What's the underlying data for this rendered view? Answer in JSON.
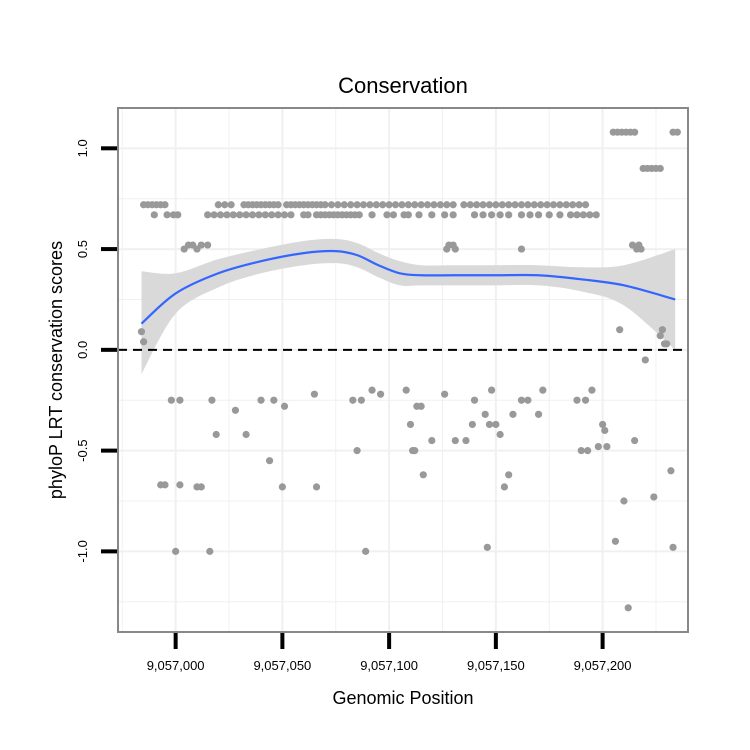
{
  "chart_data": {
    "type": "scatter",
    "title": "Conservation",
    "xlabel": "Genomic Position",
    "ylabel": "phyloP LRT conservation scores",
    "xlim": [
      9056973,
      9057240
    ],
    "ylim": [
      -1.4,
      1.2
    ],
    "x_ticks": [
      9057000,
      9057050,
      9057100,
      9057150,
      9057200
    ],
    "x_tick_labels": [
      "9,057,000",
      "9,057,050",
      "9,057,100",
      "9,057,150",
      "9,057,200"
    ],
    "y_ticks": [
      -1.0,
      -0.5,
      0.0,
      0.5,
      1.0
    ],
    "y_tick_labels": [
      "-1.0",
      "-0.5",
      "0.0",
      "0.5",
      "1.0"
    ],
    "grid": true,
    "reference_line": {
      "y": 0,
      "style": "dashed",
      "color": "#000000"
    },
    "colors": {
      "points": "#999999",
      "smooth_line": "#3366ff",
      "confidence_band": "#d9d9d9",
      "panel_border": "#888888",
      "grid": "#f0f0f0"
    },
    "series": [
      {
        "type": "scatter",
        "points": [
          [
            9056985,
            0.72
          ],
          [
            9056987,
            0.72
          ],
          [
            9056989,
            0.72
          ],
          [
            9056991,
            0.72
          ],
          [
            9056993,
            0.72
          ],
          [
            9056995,
            0.72
          ],
          [
            9056990,
            0.67
          ],
          [
            9056996,
            0.67
          ],
          [
            9056999,
            0.67
          ],
          [
            9057001,
            0.67
          ],
          [
            9056984,
            0.09
          ],
          [
            9056985,
            0.04
          ],
          [
            9056998,
            -0.25
          ],
          [
            9057002,
            -0.25
          ],
          [
            9056993,
            -0.67
          ],
          [
            9056995,
            -0.67
          ],
          [
            9057002,
            -0.67
          ],
          [
            9057010,
            -0.68
          ],
          [
            9057012,
            -0.68
          ],
          [
            9057000,
            -1.0
          ],
          [
            9057016,
            -1.0
          ],
          [
            9057004,
            0.5
          ],
          [
            9057006,
            0.52
          ],
          [
            9057008,
            0.52
          ],
          [
            9057010,
            0.5
          ],
          [
            9057012,
            0.52
          ],
          [
            9057015,
            0.52
          ],
          [
            9057017,
            -0.25
          ],
          [
            9057019,
            -0.42
          ],
          [
            9057015,
            0.67
          ],
          [
            9057018,
            0.67
          ],
          [
            9057021,
            0.67
          ],
          [
            9057024,
            0.67
          ],
          [
            9057027,
            0.67
          ],
          [
            9057030,
            0.67
          ],
          [
            9057033,
            0.67
          ],
          [
            9057020,
            0.72
          ],
          [
            9057023,
            0.72
          ],
          [
            9057026,
            0.72
          ],
          [
            9057032,
            0.72
          ],
          [
            9057034,
            0.72
          ],
          [
            9057036,
            0.72
          ],
          [
            9057038,
            0.72
          ],
          [
            9057040,
            0.72
          ],
          [
            9057042,
            0.72
          ],
          [
            9057044,
            0.72
          ],
          [
            9057046,
            0.72
          ],
          [
            9057048,
            0.72
          ],
          [
            9057036,
            0.67
          ],
          [
            9057039,
            0.67
          ],
          [
            9057042,
            0.67
          ],
          [
            9057045,
            0.67
          ],
          [
            9057048,
            0.67
          ],
          [
            9057051,
            0.67
          ],
          [
            9057054,
            0.67
          ],
          [
            9057028,
            -0.3
          ],
          [
            9057033,
            -0.42
          ],
          [
            9057040,
            -0.25
          ],
          [
            9057044,
            -0.55
          ],
          [
            9057046,
            -0.25
          ],
          [
            9057050,
            -0.68
          ],
          [
            9057051,
            -0.28
          ],
          [
            9057052,
            0.72
          ],
          [
            9057054,
            0.72
          ],
          [
            9057056,
            0.72
          ],
          [
            9057058,
            0.72
          ],
          [
            9057060,
            0.72
          ],
          [
            9057062,
            0.72
          ],
          [
            9057064,
            0.72
          ],
          [
            9057066,
            0.72
          ],
          [
            9057068,
            0.72
          ],
          [
            9057070,
            0.72
          ],
          [
            9057060,
            0.67
          ],
          [
            9057062,
            0.67
          ],
          [
            9057066,
            0.67
          ],
          [
            9057068,
            0.67
          ],
          [
            9057070,
            0.67
          ],
          [
            9057072,
            0.67
          ],
          [
            9057074,
            0.67
          ],
          [
            9057076,
            0.67
          ],
          [
            9057078,
            0.67
          ],
          [
            9057080,
            0.67
          ],
          [
            9057082,
            0.67
          ],
          [
            9057084,
            0.67
          ],
          [
            9057065,
            -0.22
          ],
          [
            9057066,
            -0.68
          ],
          [
            9057073,
            0.72
          ],
          [
            9057076,
            0.72
          ],
          [
            9057079,
            0.72
          ],
          [
            9057082,
            0.72
          ],
          [
            9057085,
            0.72
          ],
          [
            9057088,
            0.72
          ],
          [
            9057091,
            0.72
          ],
          [
            9057094,
            0.72
          ],
          [
            9057097,
            0.72
          ],
          [
            9057100,
            0.72
          ],
          [
            9057103,
            0.72
          ],
          [
            9057106,
            0.72
          ],
          [
            9057109,
            0.72
          ],
          [
            9057086,
            0.67
          ],
          [
            9057092,
            0.67
          ],
          [
            9057099,
            0.67
          ],
          [
            9057102,
            0.67
          ],
          [
            9057107,
            0.67
          ],
          [
            9057109,
            0.67
          ],
          [
            9057083,
            -0.25
          ],
          [
            9057085,
            -0.5
          ],
          [
            9057087,
            -0.25
          ],
          [
            9057089,
            -1.0
          ],
          [
            9057092,
            -0.2
          ],
          [
            9057096,
            -0.22
          ],
          [
            9057108,
            -0.2
          ],
          [
            9057110,
            -0.37
          ],
          [
            9057111,
            -0.5
          ],
          [
            9057112,
            -0.5
          ],
          [
            9057113,
            -0.28
          ],
          [
            9057115,
            -0.28
          ],
          [
            9057116,
            -0.62
          ],
          [
            9057120,
            -0.45
          ],
          [
            9057112,
            0.72
          ],
          [
            9057115,
            0.72
          ],
          [
            9057118,
            0.72
          ],
          [
            9057121,
            0.72
          ],
          [
            9057124,
            0.72
          ],
          [
            9057127,
            0.72
          ],
          [
            9057130,
            0.72
          ],
          [
            9057114,
            0.67
          ],
          [
            9057120,
            0.67
          ],
          [
            9057126,
            0.67
          ],
          [
            9057130,
            0.67
          ],
          [
            9057127,
            0.5
          ],
          [
            9057128,
            0.52
          ],
          [
            9057130,
            0.52
          ],
          [
            9057131,
            0.5
          ],
          [
            9057126,
            -0.22
          ],
          [
            9057131,
            -0.45
          ],
          [
            9057136,
            -0.45
          ],
          [
            9057139,
            -0.37
          ],
          [
            9057140,
            -0.25
          ],
          [
            9057135,
            0.72
          ],
          [
            9057138,
            0.72
          ],
          [
            9057141,
            0.72
          ],
          [
            9057144,
            0.72
          ],
          [
            9057147,
            0.72
          ],
          [
            9057150,
            0.72
          ],
          [
            9057153,
            0.72
          ],
          [
            9057156,
            0.72
          ],
          [
            9057159,
            0.72
          ],
          [
            9057140,
            0.67
          ],
          [
            9057144,
            0.67
          ],
          [
            9057148,
            0.67
          ],
          [
            9057152,
            0.67
          ],
          [
            9057156,
            0.67
          ],
          [
            9057145,
            -0.32
          ],
          [
            9057146,
            -0.98
          ],
          [
            9057147,
            -0.37
          ],
          [
            9057148,
            -0.2
          ],
          [
            9057150,
            -0.37
          ],
          [
            9057152,
            -0.42
          ],
          [
            9057154,
            -0.68
          ],
          [
            9057156,
            -0.62
          ],
          [
            9057158,
            -0.32
          ],
          [
            9057162,
            0.72
          ],
          [
            9057165,
            0.72
          ],
          [
            9057168,
            0.72
          ],
          [
            9057171,
            0.72
          ],
          [
            9057174,
            0.72
          ],
          [
            9057177,
            0.72
          ],
          [
            9057180,
            0.72
          ],
          [
            9057183,
            0.72
          ],
          [
            9057186,
            0.72
          ],
          [
            9057189,
            0.72
          ],
          [
            9057192,
            0.72
          ],
          [
            9057162,
            0.67
          ],
          [
            9057166,
            0.67
          ],
          [
            9057170,
            0.67
          ],
          [
            9057175,
            0.67
          ],
          [
            9057180,
            0.67
          ],
          [
            9057185,
            0.67
          ],
          [
            9057188,
            0.67
          ],
          [
            9057191,
            0.67
          ],
          [
            9057194,
            0.67
          ],
          [
            9057197,
            0.67
          ],
          [
            9057162,
            0.5
          ],
          [
            9057162,
            -0.25
          ],
          [
            9057165,
            -0.25
          ],
          [
            9057170,
            -0.32
          ],
          [
            9057172,
            -0.2
          ],
          [
            9057188,
            -0.25
          ],
          [
            9057190,
            -0.5
          ],
          [
            9057192,
            -0.25
          ],
          [
            9057193,
            -0.5
          ],
          [
            9057195,
            -0.2
          ],
          [
            9057198,
            -0.48
          ],
          [
            9057200,
            -0.37
          ],
          [
            9057201,
            -0.4
          ],
          [
            9057202,
            -0.48
          ],
          [
            9057205,
            1.08
          ],
          [
            9057207,
            1.08
          ],
          [
            9057209,
            1.08
          ],
          [
            9057211,
            1.08
          ],
          [
            9057213,
            1.08
          ],
          [
            9057215,
            1.08
          ],
          [
            9057206,
            -0.95
          ],
          [
            9057208,
            0.1
          ],
          [
            9057210,
            -0.75
          ],
          [
            9057212,
            -1.28
          ],
          [
            9057214,
            0.52
          ],
          [
            9057215,
            -0.45
          ],
          [
            9057216,
            0.5
          ],
          [
            9057217,
            0.52
          ],
          [
            9057218,
            0.5
          ],
          [
            9057219,
            0.9
          ],
          [
            9057221,
            0.9
          ],
          [
            9057223,
            0.9
          ],
          [
            9057225,
            0.9
          ],
          [
            9057227,
            0.9
          ],
          [
            9057220,
            -0.05
          ],
          [
            9057224,
            -0.73
          ],
          [
            9057227,
            0.07
          ],
          [
            9057228,
            0.1
          ],
          [
            9057229,
            0.03
          ],
          [
            9057230,
            0.03
          ],
          [
            9057232,
            -0.6
          ],
          [
            9057233,
            -0.98
          ],
          [
            9057233,
            1.08
          ],
          [
            9057235,
            1.08
          ]
        ]
      },
      {
        "type": "line",
        "smooth": true,
        "x": [
          9056984,
          9057000,
          9057020,
          9057040,
          9057060,
          9057075,
          9057085,
          9057095,
          9057105,
          9057115,
          9057130,
          9057150,
          9057170,
          9057190,
          9057210,
          9057234
        ],
        "y": [
          0.13,
          0.28,
          0.38,
          0.44,
          0.48,
          0.49,
          0.47,
          0.42,
          0.38,
          0.37,
          0.37,
          0.37,
          0.37,
          0.35,
          0.32,
          0.25
        ],
        "ci_low": [
          -0.12,
          0.18,
          0.31,
          0.38,
          0.42,
          0.43,
          0.41,
          0.36,
          0.32,
          0.32,
          0.32,
          0.32,
          0.32,
          0.29,
          0.22,
          0.0
        ],
        "ci_high": [
          0.39,
          0.38,
          0.45,
          0.5,
          0.54,
          0.55,
          0.53,
          0.48,
          0.44,
          0.42,
          0.42,
          0.42,
          0.42,
          0.41,
          0.42,
          0.5
        ]
      }
    ]
  }
}
